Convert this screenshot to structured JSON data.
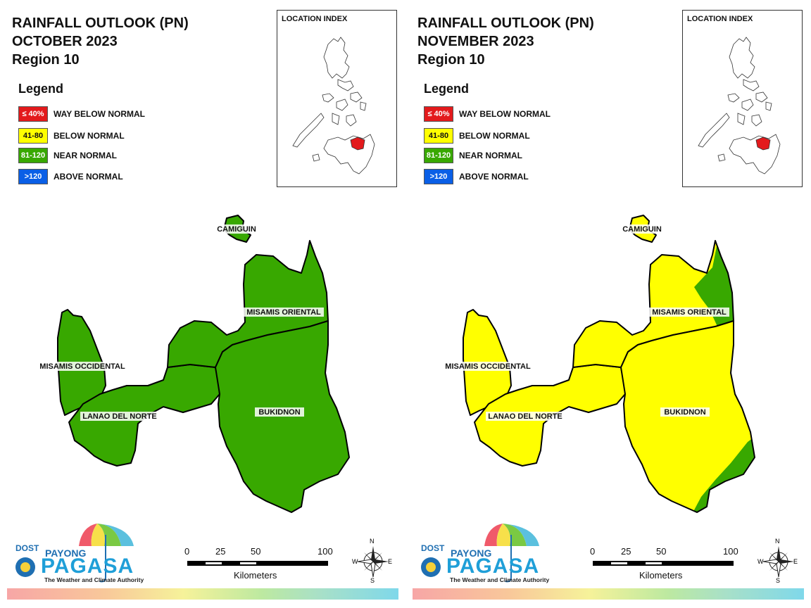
{
  "panels": [
    {
      "title_line1": "RAINFALL OUTLOOK (PN)",
      "title_line2": "OCTOBER 2023",
      "title_line3": "Region 10",
      "legend_title": "Legend",
      "legend": [
        {
          "swatch": "≤ 40%",
          "label": "WAY BELOW NORMAL",
          "color": "#e31a1c"
        },
        {
          "swatch": "41-80",
          "label": "BELOW NORMAL",
          "color": "#ffff00"
        },
        {
          "swatch": "81-120",
          "label": "NEAR NORMAL",
          "color": "#38a800"
        },
        {
          "swatch": ">120",
          "label": "ABOVE NORMAL",
          "color": "#0a5fe6"
        }
      ],
      "index_title": "LOCATION INDEX",
      "provinces": {
        "camiguin": "CAMIGUIN",
        "misamis_oriental": "MISAMIS ORIENTAL",
        "misamis_occidental": "MISAMIS OCCIDENTAL",
        "lanao_del_norte": "LANAO DEL NORTE",
        "bukidnon": "BUKIDNON"
      },
      "province_category": {
        "camiguin": "NEAR NORMAL",
        "misamis_oriental": "NEAR NORMAL",
        "misamis_occidental": "NEAR NORMAL",
        "lanao_del_norte": "NEAR NORMAL",
        "bukidnon": "NEAR NORMAL"
      },
      "logo": {
        "dost": "DOST",
        "payong": "PAYONG",
        "pagasa": "PAGASA",
        "tagline": "The Weather and Climate Authority"
      },
      "scale": {
        "ticks": [
          "0",
          "25",
          "50",
          "100"
        ],
        "unit": "Kilometers"
      },
      "compass": {
        "n": "N",
        "s": "S",
        "e": "E",
        "w": "W"
      }
    },
    {
      "title_line1": "RAINFALL OUTLOOK (PN)",
      "title_line2": "NOVEMBER 2023",
      "title_line3": "Region 10",
      "legend_title": "Legend",
      "legend": [
        {
          "swatch": "≤ 40%",
          "label": "WAY BELOW NORMAL",
          "color": "#e31a1c"
        },
        {
          "swatch": "41-80",
          "label": "BELOW NORMAL",
          "color": "#ffff00"
        },
        {
          "swatch": "81-120",
          "label": "NEAR NORMAL",
          "color": "#38a800"
        },
        {
          "swatch": ">120",
          "label": "ABOVE NORMAL",
          "color": "#0a5fe6"
        }
      ],
      "index_title": "LOCATION INDEX",
      "provinces": {
        "camiguin": "CAMIGUIN",
        "misamis_oriental": "MISAMIS ORIENTAL",
        "misamis_occidental": "MISAMIS OCCIDENTAL",
        "lanao_del_norte": "LANAO DEL NORTE",
        "bukidnon": "BUKIDNON"
      },
      "province_category": {
        "camiguin": "BELOW NORMAL",
        "misamis_oriental": "BELOW NORMAL (east coast NEAR NORMAL)",
        "misamis_occidental": "BELOW NORMAL",
        "lanao_del_norte": "BELOW NORMAL",
        "bukidnon": "BELOW NORMAL (southeast NEAR NORMAL)"
      },
      "logo": {
        "dost": "DOST",
        "payong": "PAYONG",
        "pagasa": "PAGASA",
        "tagline": "The Weather and Climate Authority"
      },
      "scale": {
        "ticks": [
          "0",
          "25",
          "50",
          "100"
        ],
        "unit": "Kilometers"
      },
      "compass": {
        "n": "N",
        "s": "S",
        "e": "E",
        "w": "W"
      }
    }
  ],
  "colors": {
    "near_normal": "#38a800",
    "below_normal": "#ffff00",
    "highlight_region": "#e31a1c"
  }
}
